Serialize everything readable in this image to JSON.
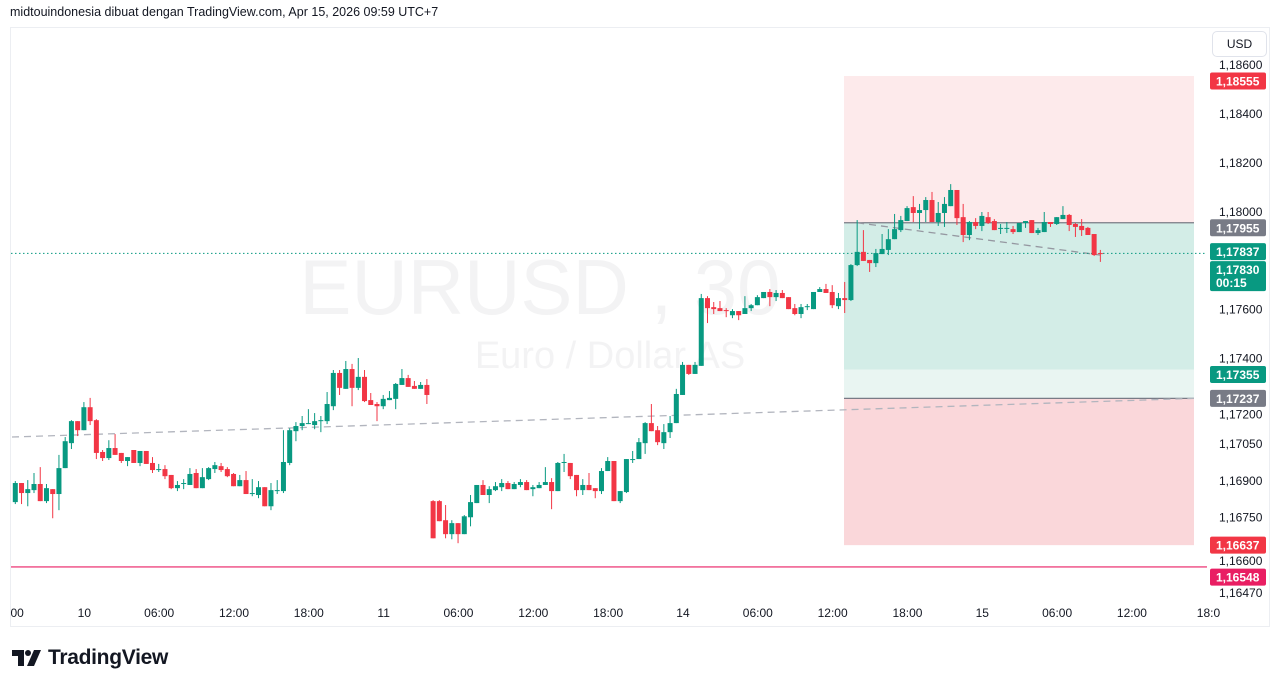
{
  "header": {
    "attribution": "midtouindonesia dibuat dengan TradingView.com, Apr 15, 2026 09:59 UTC+7"
  },
  "currency_button": "USD",
  "watermark": {
    "symbol": "EURUSD , 30",
    "description": "Euro / Dollar AS"
  },
  "footer": {
    "brand": "TradingView"
  },
  "colors": {
    "up": "#089981",
    "down": "#f23645",
    "tp_zone": "#fdeaeb",
    "profit_zone": "#d3ede7",
    "profit_zone_light": "#e9f5f2",
    "loss_zone": "#fad7da",
    "alert_line": "#e91e63",
    "gray_label": "#787b86"
  },
  "chart_data": {
    "type": "candlestick",
    "symbol": "EURUSD",
    "interval": "30",
    "ylim": [
      1.164,
      1.1874
    ],
    "y_ticks": [
      {
        "value": 1.186,
        "label": "1,18600"
      },
      {
        "value": 1.184,
        "label": "1,18400"
      },
      {
        "value": 1.182,
        "label": "1,18200"
      },
      {
        "value": 1.18,
        "label": "1,18000"
      },
      {
        "value": 1.176,
        "label": "1,17600"
      },
      {
        "value": 1.174,
        "label": "1,17400"
      },
      {
        "value": 1.172,
        "label": "1,17200"
      },
      {
        "value": 1.1705,
        "label": "1,17050"
      },
      {
        "value": 1.169,
        "label": "1,16900"
      },
      {
        "value": 1.1675,
        "label": "1,16750"
      },
      {
        "value": 1.166,
        "label": "1,16600"
      },
      {
        "value": 1.1647,
        "label": "1,16470"
      }
    ],
    "x_ticks": [
      "00",
      "10",
      "06:00",
      "12:00",
      "18:00",
      "11",
      "06:00",
      "12:00",
      "18:00",
      "14",
      "06:00",
      "12:00",
      "18:00",
      "15",
      "06:00",
      "12:00",
      "18:0"
    ],
    "price_labels": [
      {
        "value": 1.18555,
        "label": "1,18555",
        "color": "#f23645"
      },
      {
        "value": 1.17955,
        "label": "1,17955",
        "color": "#787b86"
      },
      {
        "value": 1.17837,
        "label": "1,17837",
        "color": "#089981"
      },
      {
        "value": 1.1783,
        "label": "1,17830",
        "sub": "00:15",
        "color": "#089981"
      },
      {
        "value": 1.17355,
        "label": "1,17355",
        "color": "#089981"
      },
      {
        "value": 1.17237,
        "label": "1,17237",
        "color": "#787b86"
      },
      {
        "value": 1.16637,
        "label": "1,16637",
        "color": "#f23645"
      },
      {
        "value": 1.16548,
        "label": "1,16548",
        "color": "#e91e63"
      }
    ],
    "last_price": 1.1783,
    "horizontal_line": 1.16548,
    "position_zones": [
      {
        "from": 1.18555,
        "to": 1.17955,
        "kind": "tp_zone"
      },
      {
        "from": 1.17955,
        "to": 1.17355,
        "kind": "profit_zone"
      },
      {
        "from": 1.17355,
        "to": 1.17237,
        "kind": "profit_zone_light"
      },
      {
        "from": 1.17237,
        "to": 1.16637,
        "kind": "loss_zone"
      }
    ],
    "trend_lines": [
      {
        "start": 1.17079,
        "end": 1.17237
      },
      {
        "start": 1.17955,
        "end": 1.17823
      }
    ],
    "candles_ohlc": [
      [
        1.16813,
        1.16899,
        1.16805,
        1.16891
      ],
      [
        1.16891,
        1.16891,
        1.16805,
        1.1685
      ],
      [
        1.1685,
        1.16903,
        1.16796,
        1.16866
      ],
      [
        1.16862,
        1.16932,
        1.1685,
        1.16887
      ],
      [
        1.16887,
        1.16956,
        1.16817,
        1.16817
      ],
      [
        1.16817,
        1.16887,
        1.16809,
        1.1687
      ],
      [
        1.16866,
        1.16866,
        1.16747,
        1.16846
      ],
      [
        1.16846,
        1.17006,
        1.1678,
        1.16952
      ],
      [
        1.16952,
        1.17079,
        1.16952,
        1.17062
      ],
      [
        1.17054,
        1.17148,
        1.1703,
        1.17144
      ],
      [
        1.17144,
        1.17144,
        1.17083,
        1.17107
      ],
      [
        1.17107,
        1.17222,
        1.17107,
        1.17201
      ],
      [
        1.17201,
        1.17239,
        1.17128,
        1.17144
      ],
      [
        1.17148,
        1.17152,
        1.16989,
        1.17014
      ],
      [
        1.17018,
        1.17026,
        1.16981,
        1.16993
      ],
      [
        1.16993,
        1.17066,
        1.16985,
        1.17034
      ],
      [
        1.17034,
        1.17091,
        1.17006,
        1.17006
      ],
      [
        1.17014,
        1.17014,
        1.16973,
        1.16981
      ],
      [
        1.16981,
        1.16997,
        1.1696,
        1.16997
      ],
      [
        1.17026,
        1.17026,
        1.16973,
        1.16973
      ],
      [
        1.16973,
        1.17022,
        1.1696,
        1.17022
      ],
      [
        1.17022,
        1.17022,
        1.16969,
        1.16969
      ],
      [
        1.16973,
        1.16997,
        1.16932,
        1.16944
      ],
      [
        1.16948,
        1.16969,
        1.16936,
        1.16948
      ],
      [
        1.16948,
        1.16964,
        1.16907,
        1.16919
      ],
      [
        1.16924,
        1.16924,
        1.16866,
        1.1687
      ],
      [
        1.1687,
        1.16899,
        1.16858,
        1.16883
      ],
      [
        1.16891,
        1.16907,
        1.16866,
        1.16891
      ],
      [
        1.16883,
        1.16952,
        1.16883,
        1.16928
      ],
      [
        1.16932,
        1.16948,
        1.1687,
        1.1687
      ],
      [
        1.1687,
        1.16952,
        1.1687,
        1.16915
      ],
      [
        1.16907,
        1.16956,
        1.16903,
        1.16952
      ],
      [
        1.16948,
        1.16977,
        1.16932,
        1.16964
      ],
      [
        1.1696,
        1.16973,
        1.16936,
        1.16944
      ],
      [
        1.16948,
        1.16956,
        1.16915,
        1.16919
      ],
      [
        1.16928,
        1.16932,
        1.16878,
        1.16878
      ],
      [
        1.16878,
        1.16924,
        1.16878,
        1.16903
      ],
      [
        1.16903,
        1.1694,
        1.16846,
        1.16846
      ],
      [
        1.1685,
        1.16907,
        1.16837,
        1.1685
      ],
      [
        1.16842,
        1.16899,
        1.16829,
        1.16874
      ],
      [
        1.16874,
        1.16874,
        1.16796,
        1.16796
      ],
      [
        1.16796,
        1.16891,
        1.1678,
        1.16862
      ],
      [
        1.16862,
        1.16903,
        1.16846,
        1.16862
      ],
      [
        1.16858,
        1.17107,
        1.1685,
        1.16977
      ],
      [
        1.16973,
        1.17115,
        1.16964,
        1.17107
      ],
      [
        1.17103,
        1.1714,
        1.17062,
        1.17124
      ],
      [
        1.17124,
        1.17165,
        1.17107,
        1.17136
      ],
      [
        1.17136,
        1.17193,
        1.17132,
        1.17136
      ],
      [
        1.17128,
        1.17177,
        1.17111,
        1.17144
      ],
      [
        1.17148,
        1.17165,
        1.17099,
        1.17148
      ],
      [
        1.17144,
        1.17263,
        1.17132,
        1.17214
      ],
      [
        1.17205,
        1.17353,
        1.17189,
        1.17341
      ],
      [
        1.17341,
        1.17353,
        1.17251,
        1.1728
      ],
      [
        1.17276,
        1.1739,
        1.17276,
        1.17357
      ],
      [
        1.17357,
        1.17378,
        1.17205,
        1.1728
      ],
      [
        1.1728,
        1.17402,
        1.17271,
        1.17325
      ],
      [
        1.17325,
        1.17353,
        1.17222,
        1.17226
      ],
      [
        1.1723,
        1.17259,
        1.1721,
        1.1721
      ],
      [
        1.17214,
        1.17222,
        1.17144,
        1.17205
      ],
      [
        1.17205,
        1.17251,
        1.17193,
        1.17235
      ],
      [
        1.1723,
        1.17267,
        1.1723,
        1.17239
      ],
      [
        1.17235,
        1.173,
        1.17193,
        1.17296
      ],
      [
        1.17292,
        1.17357,
        1.17292,
        1.1732
      ],
      [
        1.1732,
        1.17333,
        1.17284,
        1.17284
      ],
      [
        1.17288,
        1.17308,
        1.17276,
        1.17276
      ],
      [
        1.17276,
        1.17304,
        1.17276,
        1.17292
      ],
      [
        1.17292,
        1.17316,
        1.17214,
        1.17251
      ],
      [
        1.16817,
        1.16821,
        1.16665,
        1.16665
      ],
      [
        1.16817,
        1.16821,
        1.16735,
        1.16735
      ],
      [
        1.16739,
        1.16801,
        1.16665,
        1.16682
      ],
      [
        1.16682,
        1.16739,
        1.16661,
        1.16727
      ],
      [
        1.16727,
        1.16727,
        1.16645,
        1.16682
      ],
      [
        1.16682,
        1.1676,
        1.16682,
        1.16755
      ],
      [
        1.16751,
        1.16842,
        1.16714,
        1.16813
      ],
      [
        1.16809,
        1.16883,
        1.16809,
        1.16883
      ],
      [
        1.16883,
        1.16903,
        1.16842,
        1.16842
      ],
      [
        1.16842,
        1.16878,
        1.16809,
        1.16866
      ],
      [
        1.16862,
        1.16895,
        1.16858,
        1.16878
      ],
      [
        1.16874,
        1.16907,
        1.16858,
        1.16891
      ],
      [
        1.16891,
        1.16899,
        1.16866,
        1.16866
      ],
      [
        1.16866,
        1.16895,
        1.16866,
        1.16887
      ],
      [
        1.16883,
        1.16907,
        1.16874,
        1.16895
      ],
      [
        1.16895,
        1.16903,
        1.16862,
        1.16862
      ],
      [
        1.16866,
        1.16883,
        1.16837,
        1.16874
      ],
      [
        1.1687,
        1.16895,
        1.1687,
        1.16883
      ],
      [
        1.16883,
        1.16956,
        1.16883,
        1.16895
      ],
      [
        1.16895,
        1.16911,
        1.16784,
        1.16858
      ],
      [
        1.16858,
        1.16977,
        1.16858,
        1.16973
      ],
      [
        1.16977,
        1.1701,
        1.16936,
        1.16977
      ],
      [
        1.16973,
        1.16973,
        1.16907,
        1.16919
      ],
      [
        1.16924,
        1.16924,
        1.16837,
        1.16862
      ],
      [
        1.16862,
        1.16907,
        1.16842,
        1.16883
      ],
      [
        1.16883,
        1.16932,
        1.16862,
        1.16862
      ],
      [
        1.1687,
        1.1687,
        1.16829,
        1.16858
      ],
      [
        1.16858,
        1.16952,
        1.16846,
        1.1694
      ],
      [
        1.1694,
        1.16997,
        1.1694,
        1.16981
      ],
      [
        1.16981,
        1.16981,
        1.16817,
        1.16817
      ],
      [
        1.16817,
        1.16858,
        1.16809,
        1.16858
      ],
      [
        1.16854,
        1.16989,
        1.1685,
        1.16989
      ],
      [
        1.16989,
        1.17022,
        1.16973,
        1.16989
      ],
      [
        1.16989,
        1.17075,
        1.16989,
        1.17058
      ],
      [
        1.17054,
        1.1714,
        1.1701,
        1.17136
      ],
      [
        1.17136,
        1.17214,
        1.17103,
        1.17103
      ],
      [
        1.17107,
        1.17124,
        1.17046,
        1.17058
      ],
      [
        1.17054,
        1.17132,
        1.1703,
        1.17099
      ],
      [
        1.17099,
        1.17165,
        1.17075,
        1.17136
      ],
      [
        1.17136,
        1.17276,
        1.17136,
        1.17255
      ],
      [
        1.17251,
        1.17386,
        1.17251,
        1.17374
      ],
      [
        1.17374,
        1.17374,
        1.17333,
        1.17337
      ],
      [
        1.17337,
        1.17386,
        1.17337,
        1.17374
      ],
      [
        1.1737,
        1.17664,
        1.1737,
        1.17647
      ],
      [
        1.17647,
        1.17655,
        1.17545,
        1.17606
      ],
      [
        1.1761,
        1.17631,
        1.17582,
        1.17602
      ],
      [
        1.17606,
        1.17635,
        1.17594,
        1.17594
      ],
      [
        1.17598,
        1.17606,
        1.17569,
        1.17594
      ],
      [
        1.17577,
        1.17602,
        1.17565,
        1.17594
      ],
      [
        1.17594,
        1.17594,
        1.17557,
        1.17577
      ],
      [
        1.17582,
        1.17655,
        1.17582,
        1.17606
      ],
      [
        1.17606,
        1.17623,
        1.17594,
        1.17618
      ],
      [
        1.17618,
        1.17659,
        1.17618,
        1.17651
      ],
      [
        1.17647,
        1.17672,
        1.17647,
        1.17672
      ],
      [
        1.17672,
        1.17684,
        1.17614,
        1.17651
      ],
      [
        1.17651,
        1.1768,
        1.17635,
        1.17668
      ],
      [
        1.17668,
        1.1768,
        1.17647,
        1.17647
      ],
      [
        1.17651,
        1.17651,
        1.17602,
        1.17602
      ],
      [
        1.17606,
        1.17623,
        1.17577,
        1.17582
      ],
      [
        1.17582,
        1.17623,
        1.17565,
        1.1761
      ],
      [
        1.17614,
        1.17623,
        1.17598,
        1.17614
      ],
      [
        1.17602,
        1.17672,
        1.17602,
        1.17672
      ],
      [
        1.17672,
        1.17692,
        1.17672,
        1.17684
      ],
      [
        1.17684,
        1.17705,
        1.17668,
        1.17668
      ],
      [
        1.17672,
        1.177,
        1.17606,
        1.17618
      ],
      [
        1.17614,
        1.17668,
        1.17602,
        1.17647
      ],
      [
        1.17647,
        1.17713,
        1.17586,
        1.17639
      ],
      [
        1.17639,
        1.17786,
        1.17635,
        1.17782
      ],
      [
        1.17782,
        1.17966,
        1.17778,
        1.17836
      ],
      [
        1.17836,
        1.17925,
        1.17799,
        1.17799
      ],
      [
        1.17803,
        1.17803,
        1.17754,
        1.1779
      ],
      [
        1.1779,
        1.17848,
        1.17774,
        1.17831
      ],
      [
        1.17827,
        1.17909,
        1.17827,
        1.17848
      ],
      [
        1.17844,
        1.17929,
        1.17823,
        1.17888
      ],
      [
        1.17888,
        1.17991,
        1.17888,
        1.17929
      ],
      [
        1.17925,
        1.17983,
        1.17917,
        1.17966
      ],
      [
        1.17962,
        1.18023,
        1.17962,
        1.18015
      ],
      [
        1.18019,
        1.18064,
        1.17958,
        1.17995
      ],
      [
        1.17995,
        1.18032,
        1.17929,
        1.18007
      ],
      [
        1.18007,
        1.1806,
        1.17958,
        1.18048
      ],
      [
        1.18048,
        1.18081,
        1.17958,
        1.17958
      ],
      [
        1.17958,
        1.1804,
        1.17942,
        1.17995
      ],
      [
        1.17995,
        1.1806,
        1.17938,
        1.18032
      ],
      [
        1.18023,
        1.18113,
        1.18023,
        1.18089
      ],
      [
        1.18089,
        1.18089,
        1.17946,
        1.17974
      ],
      [
        1.17978,
        1.18032,
        1.17876,
        1.17905
      ],
      [
        1.17905,
        1.17962,
        1.17884,
        1.17958
      ],
      [
        1.17958,
        1.17974,
        1.17929,
        1.17942
      ],
      [
        1.17942,
        1.17999,
        1.17921,
        1.17983
      ],
      [
        1.17978,
        1.17999,
        1.1795,
        1.17954
      ],
      [
        1.17962,
        1.1797,
        1.17925,
        1.17925
      ],
      [
        1.17934,
        1.1795,
        1.17909,
        1.17934
      ],
      [
        1.17934,
        1.17958,
        1.17913,
        1.17934
      ],
      [
        1.17929,
        1.17942,
        1.17909,
        1.17917
      ],
      [
        1.17917,
        1.17954,
        1.17917,
        1.17954
      ],
      [
        1.17954,
        1.17962,
        1.17934,
        1.17962
      ],
      [
        1.17966,
        1.17966,
        1.17913,
        1.17913
      ],
      [
        1.17913,
        1.17934,
        1.17905,
        1.17925
      ],
      [
        1.17917,
        1.17999,
        1.17917,
        1.17958
      ],
      [
        1.17958,
        1.17958,
        1.17938,
        1.1795
      ],
      [
        1.1795,
        1.17978,
        1.17946,
        1.17978
      ],
      [
        1.1797,
        1.18023,
        1.1797,
        1.17987
      ],
      [
        1.17987,
        1.17991,
        1.17921,
        1.17946
      ],
      [
        1.1795,
        1.17954,
        1.17897,
        1.17938
      ],
      [
        1.17942,
        1.1797,
        1.17901,
        1.17925
      ],
      [
        1.17934,
        1.17938,
        1.17905,
        1.17905
      ],
      [
        1.17909,
        1.17909,
        1.17819,
        1.17823
      ],
      [
        1.17831,
        1.17844,
        1.17795,
        1.1783
      ]
    ]
  }
}
